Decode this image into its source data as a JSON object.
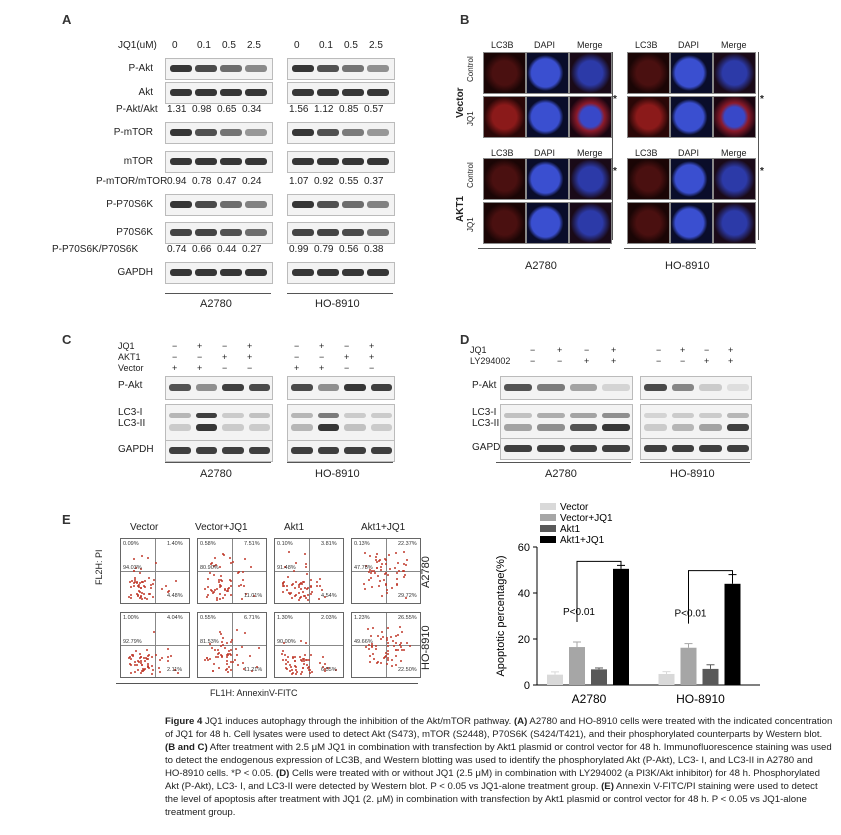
{
  "panelA": {
    "label": "A",
    "conc_header": "JQ1(uM)",
    "concs": [
      "0",
      "0.1",
      "0.5",
      "2.5",
      "0",
      "0.1",
      "0.5",
      "2.5"
    ],
    "rows": [
      {
        "name": "P-Akt"
      },
      {
        "name": "Akt"
      },
      {
        "ratio_label": "P-Akt/Akt",
        "values": [
          "1.31",
          "0.98",
          "0.65",
          "0.34",
          "1.56",
          "1.12",
          "0.85",
          "0.57"
        ]
      },
      {
        "name": "P-mTOR"
      },
      {
        "name": "mTOR"
      },
      {
        "ratio_label": "P-mTOR/mTOR",
        "values": [
          "0.94",
          "0.78",
          "0.47",
          "0.24",
          "1.07",
          "0.92",
          "0.55",
          "0.37"
        ]
      },
      {
        "name": "P-P70S6K"
      },
      {
        "name": "P70S6K"
      },
      {
        "ratio_label": "P-P70S6K/P70S6K",
        "values": [
          "0.74",
          "0.66",
          "0.44",
          "0.27",
          "0.99",
          "0.79",
          "0.56",
          "0.38"
        ]
      },
      {
        "name": "GAPDH"
      }
    ],
    "cell_lines": [
      "A2780",
      "HO-8910"
    ]
  },
  "panelB": {
    "label": "B",
    "col_headers": [
      "LC3B",
      "DAPI",
      "Merge",
      "LC3B",
      "DAPI",
      "Merge"
    ],
    "groups": [
      "Vector",
      "AKT1"
    ],
    "row_labels": [
      "Control",
      "JQ1",
      "Control",
      "JQ1"
    ],
    "star": "*",
    "cell_lines": [
      "A2780",
      "HO-8910"
    ]
  },
  "panelC": {
    "label": "C",
    "conditions": [
      {
        "name": "JQ1",
        "signs": [
          "−",
          "+",
          "−",
          "+",
          "−",
          "+",
          "−",
          "+"
        ]
      },
      {
        "name": "AKT1",
        "signs": [
          "−",
          "−",
          "+",
          "+",
          "−",
          "−",
          "+",
          "+"
        ]
      },
      {
        "name": "Vector",
        "signs": [
          "+",
          "+",
          "−",
          "−",
          "+",
          "+",
          "−",
          "−"
        ]
      }
    ],
    "blots": [
      "P-Akt",
      "LC3-I",
      "LC3-II",
      "GAPDH"
    ],
    "cell_lines": [
      "A2780",
      "HO-8910"
    ]
  },
  "panelD": {
    "label": "D",
    "conditions": [
      {
        "name": "JQ1",
        "signs": [
          "−",
          "+",
          "−",
          "+",
          "−",
          "+",
          "−",
          "+"
        ]
      },
      {
        "name": "LY294002",
        "signs": [
          "−",
          "−",
          "+",
          "+",
          "−",
          "−",
          "+",
          "+"
        ]
      }
    ],
    "blots": [
      "P-Akt",
      "LC3-I",
      "LC3-II",
      "GAPDH"
    ],
    "cell_lines": [
      "A2780",
      "HO-8910"
    ]
  },
  "panelE": {
    "label": "E",
    "col_headers": [
      "Vector",
      "Vector+JQ1",
      "Akt1",
      "Akt1+JQ1"
    ],
    "row_labels": [
      "A2780",
      "HO-8910"
    ],
    "y_axis": "FL2H: PI",
    "x_axis": "FL1H: AnnexinV-FITC",
    "quadrants": [
      [
        [
          "0.09%",
          "1.40%",
          "94.03%",
          "4.48%"
        ],
        [
          "0.58%",
          "7.51%",
          "80.90%",
          "11.01%"
        ],
        [
          "0.10%",
          "3.81%",
          "91.48%",
          "4.54%"
        ],
        [
          "0.13%",
          "22.37%",
          "47.78%",
          "29.72%"
        ]
      ],
      [
        [
          "1.00%",
          "4.04%",
          "92.79%",
          "2.11%"
        ],
        [
          "0.55%",
          "6.71%",
          "81.53%",
          "11.21%"
        ],
        [
          "1.30%",
          "2.03%",
          "90.00%",
          "6.55%"
        ],
        [
          "1.23%",
          "26.55%",
          "49.66%",
          "22.50%"
        ]
      ]
    ],
    "colors": {
      "dots": "#c0392b"
    }
  },
  "chart_data": {
    "type": "bar",
    "categories": [
      "A2780",
      "HO-8910"
    ],
    "series": [
      {
        "name": "Vector",
        "values": [
          4.5,
          4.8
        ],
        "errors": [
          1.2,
          1.0
        ],
        "color": "#d9d9d9"
      },
      {
        "name": "Vector+JQ1",
        "values": [
          16.5,
          16.2
        ],
        "errors": [
          2.2,
          1.8
        ],
        "color": "#a6a6a6"
      },
      {
        "name": "Akt1",
        "values": [
          6.8,
          7.0
        ],
        "errors": [
          0.6,
          1.8
        ],
        "color": "#595959"
      },
      {
        "name": "Akt1+JQ1",
        "values": [
          50.5,
          44.0
        ],
        "errors": [
          1.5,
          4.0
        ],
        "color": "#000000"
      }
    ],
    "ylabel": "Apoptotic percentage(%)",
    "ylim": [
      0,
      60
    ],
    "yticks": [
      0,
      20,
      40,
      60
    ],
    "annotations": [
      "P<0.01",
      "P<0.01"
    ],
    "legend": "top-left"
  },
  "caption": {
    "fig": "Figure 4",
    "title": " JQ1 induces autophagy through the inhibition of the Akt/mTOR pathway. ",
    "a_lab": "(A)",
    "a_text": " A2780 and HO-8910 cells were treated with the indicated concentration of JQ1 for 48 h. Cell lysates were used to detect Akt (S473), mTOR (S2448), P70S6K (S424/T421), and their phosphorylated counterparts by Western blot. ",
    "bc_lab": "(B and C)",
    "bc_text": " After treatment with 2.5 μM JQ1 in combination with transfection by Akt1 plasmid or control vector for 48 h. Immunofluorescence staining was used to detect the endogenous expression of LC3B, and Western blotting was used to identify the phosphorylated Akt (P-Akt), LC3- I, and LC3-II in A2780 and HO-8910 cells. *P < 0.05. ",
    "d_lab": "(D)",
    "d_text": " Cells were treated with or without JQ1 (2.5 μM) in combination with LY294002 (a PI3K/Akt inhibitor) for 48 h. Phosphorylated Akt (P-Akt), LC3- I, and LC3-II were detected by Western blot. P < 0.05 vs JQ1-alone treatment group. ",
    "e_lab": "(E)",
    "e_text": " Annexin V-FITC/PI staining were used to detect the level of apoptosis after treatment with JQ1 (2. μM) in combination with transfection by Akt1 plasmid or control vector for 48 h. P < 0.05 vs JQ1-alone treatment group."
  }
}
